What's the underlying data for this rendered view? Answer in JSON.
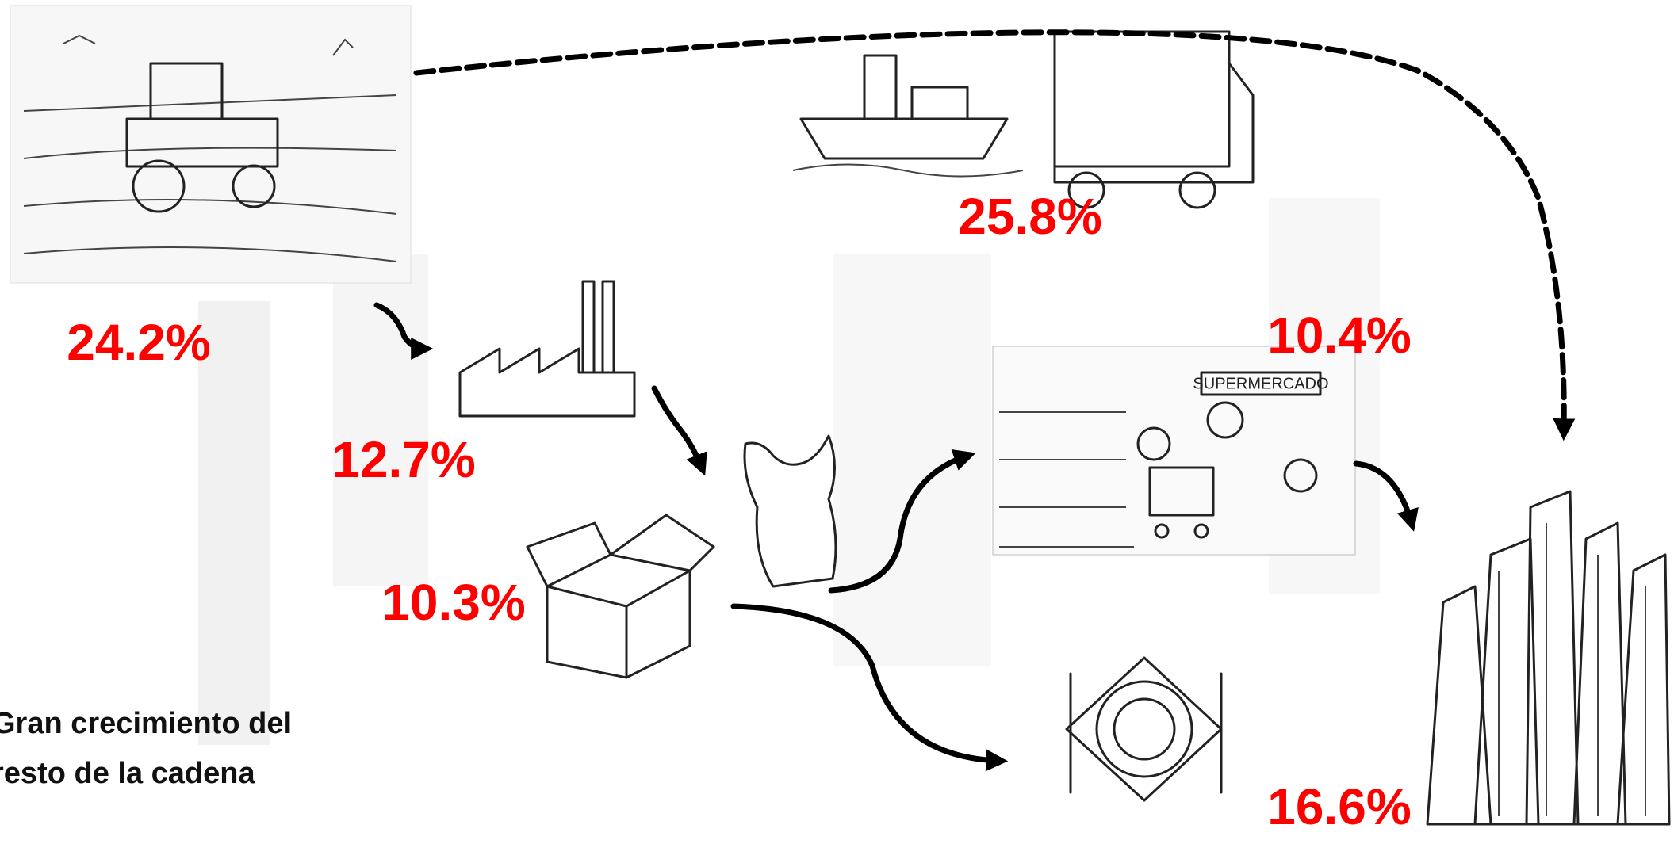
{
  "percentages": [
    "24.2%",
    "12.7%",
    "10.3%",
    "25.8%",
    "10.4%",
    "16.6%"
  ],
  "sign": "SUPERMERCADO",
  "caption": [
    "Gran crecimiento del",
    "resto de la cadena"
  ]
}
